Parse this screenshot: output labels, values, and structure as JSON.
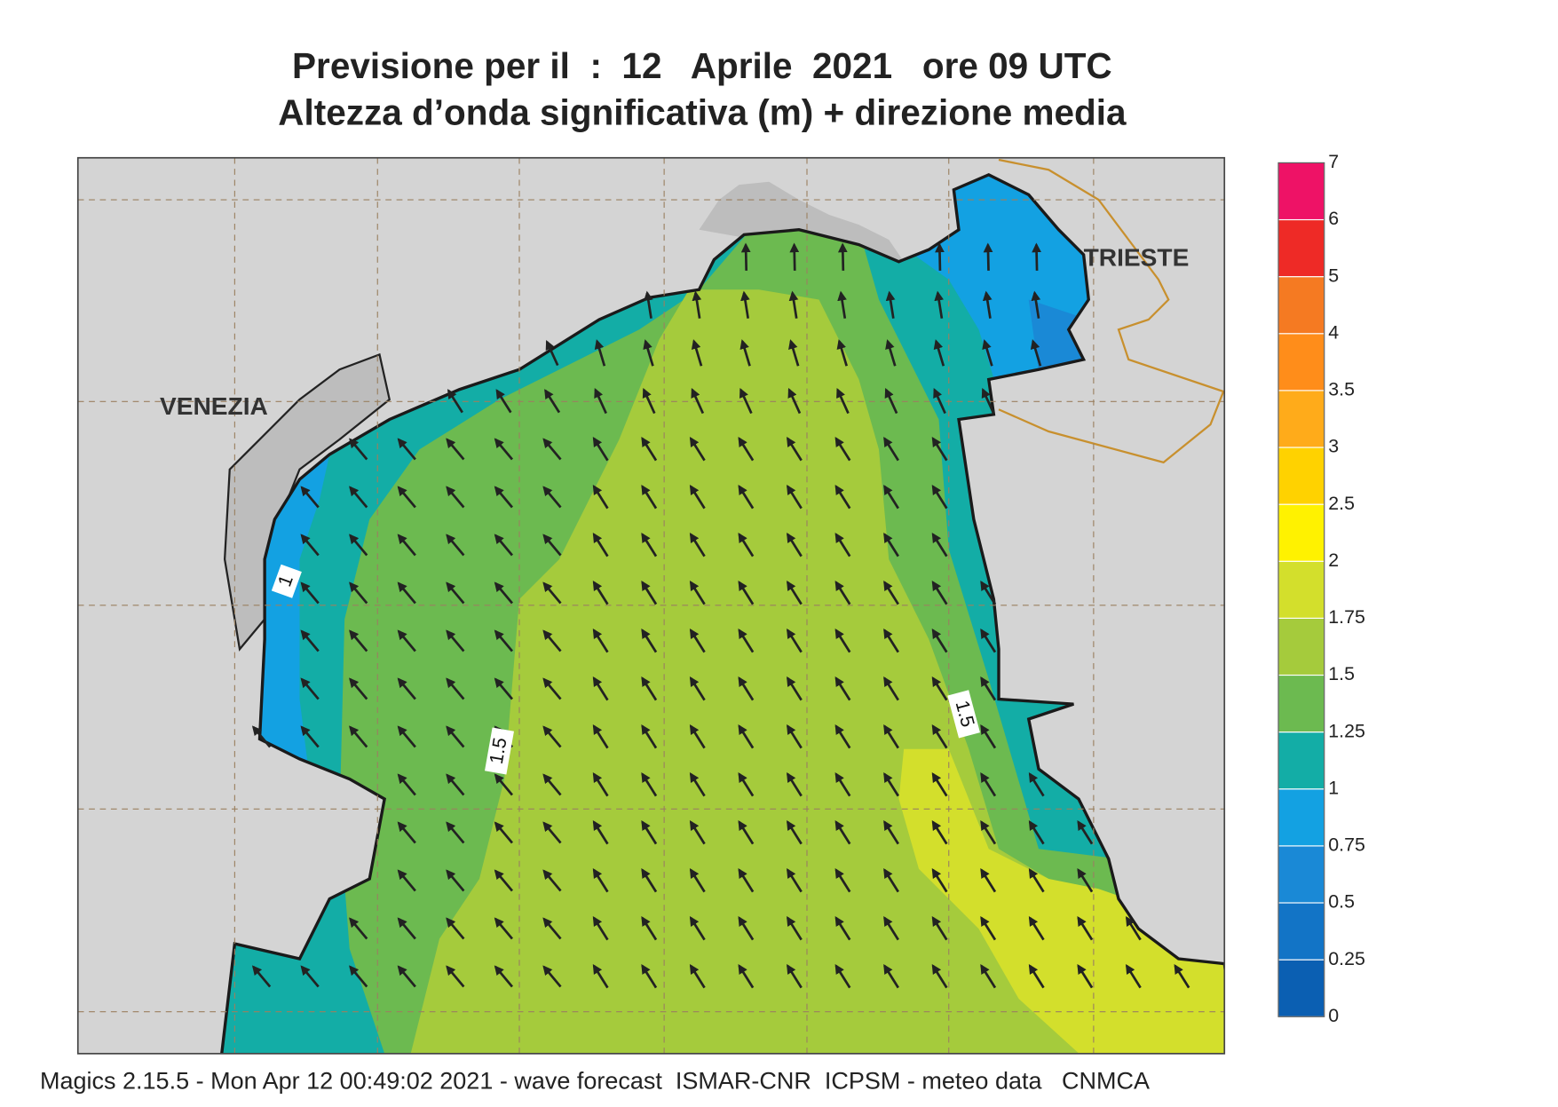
{
  "title": {
    "line1": "Previsione per il  :  12   Aprile  2021   ore 09 UTC",
    "line2": "Altezza d’onda significativa (m) + direzione media"
  },
  "places": [
    "VENEZIA",
    "TRIESTE"
  ],
  "contour_labels": [
    "1",
    "1.5",
    "1.5"
  ],
  "legend": {
    "labels": [
      "0",
      "0.25",
      "0.5",
      "0.75",
      "1",
      "1.25",
      "1.5",
      "1.75",
      "2",
      "2.5",
      "3",
      "3.5",
      "4",
      "5",
      "6",
      "7"
    ],
    "colors": [
      "#0b5fb2",
      "#1274c6",
      "#1a89d6",
      "#13a1e2",
      "#13ada6",
      "#6cba50",
      "#a5cb3c",
      "#d3df2c",
      "#fff200",
      "#ffd200",
      "#ffab1a",
      "#ff8d1a",
      "#f57a22",
      "#ee2a26",
      "#ee1266"
    ]
  },
  "footer": "Magics 2.15.5 - Mon Apr 12 00:49:02 2021 - wave forecast  ISMAR-CNR  ICPSM - meteo data   CNMCA"
}
